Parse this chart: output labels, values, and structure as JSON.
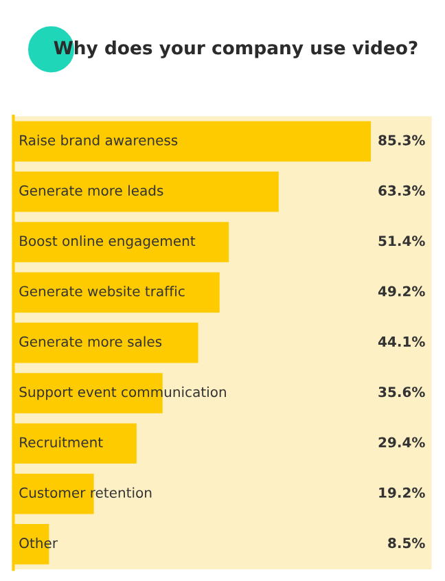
{
  "chart_data": {
    "type": "bar",
    "orientation": "horizontal",
    "title": "Why does your company use video?",
    "categories": [
      "Raise brand awareness",
      "Generate more leads",
      "Boost online engagement",
      "Generate website traffic",
      "Generate more sales",
      "Support event communication",
      "Recruitment",
      "Customer retention",
      "Other"
    ],
    "values": [
      85.3,
      63.3,
      51.4,
      49.2,
      44.1,
      35.6,
      29.4,
      19.2,
      8.5
    ],
    "value_labels": [
      "85.3%",
      "63.3%",
      "51.4%",
      "49.2%",
      "44.1%",
      "35.6%",
      "29.4%",
      "19.2%",
      "8.5%"
    ],
    "color": "#fdcb00"
  }
}
